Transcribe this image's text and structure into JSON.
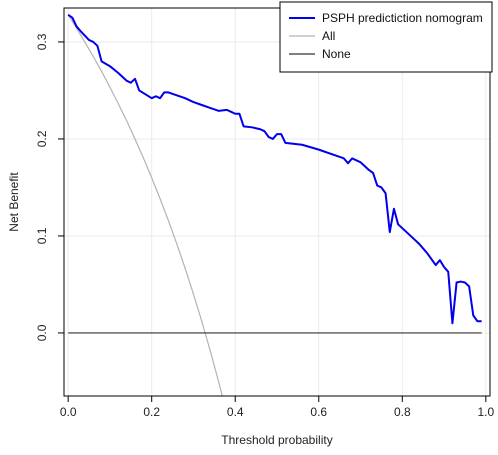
{
  "chart_data": {
    "type": "line",
    "title": "",
    "xlabel": "Threshold probability",
    "ylabel": "Net Benefit",
    "xlim": [
      -0.01,
      1.01
    ],
    "ylim": [
      -0.065,
      0.335
    ],
    "x_ticks": [
      0,
      0.2,
      0.4,
      0.6,
      0.8,
      1
    ],
    "x_tick_labels": [
      "0.0",
      "0.2",
      "0.4",
      "0.6",
      "0.8",
      "1.0"
    ],
    "y_ticks": [
      0,
      0.1,
      0.2,
      0.3
    ],
    "y_tick_labels": [
      "0.0",
      "0.1",
      "0.2",
      "0.3"
    ],
    "grid": true,
    "legend_position": "top-right",
    "series": [
      {
        "name": "PSPH predictiction nomogram",
        "color": "#0000ee",
        "x": [
          0.0,
          0.01,
          0.02,
          0.03,
          0.05,
          0.06,
          0.07,
          0.08,
          0.1,
          0.12,
          0.14,
          0.15,
          0.16,
          0.17,
          0.2,
          0.21,
          0.22,
          0.23,
          0.24,
          0.26,
          0.28,
          0.3,
          0.32,
          0.34,
          0.36,
          0.38,
          0.39,
          0.4,
          0.41,
          0.42,
          0.44,
          0.46,
          0.47,
          0.48,
          0.49,
          0.5,
          0.51,
          0.52,
          0.56,
          0.6,
          0.64,
          0.66,
          0.67,
          0.68,
          0.69,
          0.7,
          0.72,
          0.73,
          0.74,
          0.75,
          0.76,
          0.77,
          0.78,
          0.79,
          0.8,
          0.82,
          0.84,
          0.86,
          0.88,
          0.89,
          0.9,
          0.91,
          0.92,
          0.93,
          0.94,
          0.95,
          0.96,
          0.97,
          0.98,
          0.99
        ],
        "y": [
          0.328,
          0.325,
          0.316,
          0.311,
          0.302,
          0.3,
          0.296,
          0.28,
          0.275,
          0.268,
          0.26,
          0.258,
          0.262,
          0.25,
          0.242,
          0.244,
          0.242,
          0.248,
          0.248,
          0.245,
          0.242,
          0.238,
          0.235,
          0.232,
          0.229,
          0.23,
          0.228,
          0.226,
          0.226,
          0.213,
          0.212,
          0.21,
          0.208,
          0.202,
          0.2,
          0.205,
          0.205,
          0.196,
          0.194,
          0.189,
          0.183,
          0.18,
          0.175,
          0.18,
          0.178,
          0.176,
          0.168,
          0.165,
          0.152,
          0.15,
          0.144,
          0.104,
          0.128,
          0.112,
          0.108,
          0.1,
          0.092,
          0.082,
          0.07,
          0.075,
          0.068,
          0.063,
          0.01,
          0.052,
          0.053,
          0.052,
          0.048,
          0.018,
          0.012,
          0.012
        ]
      },
      {
        "name": "All",
        "color": "#b3b3b3",
        "x": [
          0.0,
          0.02,
          0.04,
          0.06,
          0.08,
          0.1,
          0.12,
          0.14,
          0.16,
          0.18,
          0.2,
          0.22,
          0.24,
          0.26,
          0.28,
          0.3,
          0.32,
          0.34,
          0.36,
          0.37
        ],
        "y": [
          0.328,
          0.3143,
          0.2997,
          0.2851,
          0.2697,
          0.2533,
          0.2364,
          0.2188,
          0.2,
          0.1805,
          0.16,
          0.1385,
          0.1158,
          0.0919,
          0.0667,
          0.04,
          0.0118,
          -0.0182,
          -0.05,
          -0.0667
        ]
      },
      {
        "name": "None",
        "color": "#333333",
        "x": [
          0.0,
          0.99
        ],
        "y": [
          0.0,
          0.0
        ]
      }
    ]
  }
}
